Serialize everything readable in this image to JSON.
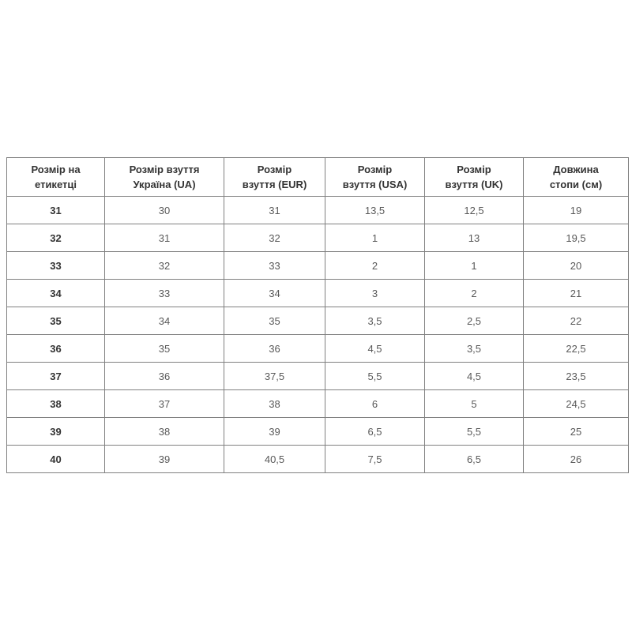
{
  "chart_data": {
    "type": "table",
    "title": "",
    "columns": [
      "Розмір на етикетці",
      "Розмір взуття Україна (UA)",
      "Розмір взуття (EUR)",
      "Розмір взуття (USA)",
      "Розмір взуття (UK)",
      "Довжина стопи (см)"
    ],
    "rows": [
      [
        "31",
        "30",
        "31",
        "13,5",
        "12,5",
        "19"
      ],
      [
        "32",
        "31",
        "32",
        "1",
        "13",
        "19,5"
      ],
      [
        "33",
        "32",
        "33",
        "2",
        "1",
        "20"
      ],
      [
        "34",
        "33",
        "34",
        "3",
        "2",
        "21"
      ],
      [
        "35",
        "34",
        "35",
        "3,5",
        "2,5",
        "22"
      ],
      [
        "36",
        "35",
        "36",
        "4,5",
        "3,5",
        "22,5"
      ],
      [
        "37",
        "36",
        "37,5",
        "5,5",
        "4,5",
        "23,5"
      ],
      [
        "38",
        "37",
        "38",
        "6",
        "5",
        "24,5"
      ],
      [
        "39",
        "38",
        "39",
        "6,5",
        "5,5",
        "25"
      ],
      [
        "40",
        "39",
        "40,5",
        "7,5",
        "6,5",
        "26"
      ]
    ]
  },
  "header_lines": [
    {
      "line1": "Розмір на",
      "line2": "етикетці"
    },
    {
      "line1": "Розмір взуття",
      "line2": "Україна (UA)"
    },
    {
      "line1": "Розмір",
      "line2": "взуття (EUR)"
    },
    {
      "line1": "Розмір",
      "line2": "взуття (USA)"
    },
    {
      "line1": "Розмір",
      "line2": "взуття (UK)"
    },
    {
      "line1": "Довжина",
      "line2": "стопи (см)"
    }
  ],
  "colors": {
    "page_background": "#ffffff",
    "border": "#808080",
    "header_text": "#333333",
    "label_text": "#333333",
    "cell_text": "#595959"
  }
}
